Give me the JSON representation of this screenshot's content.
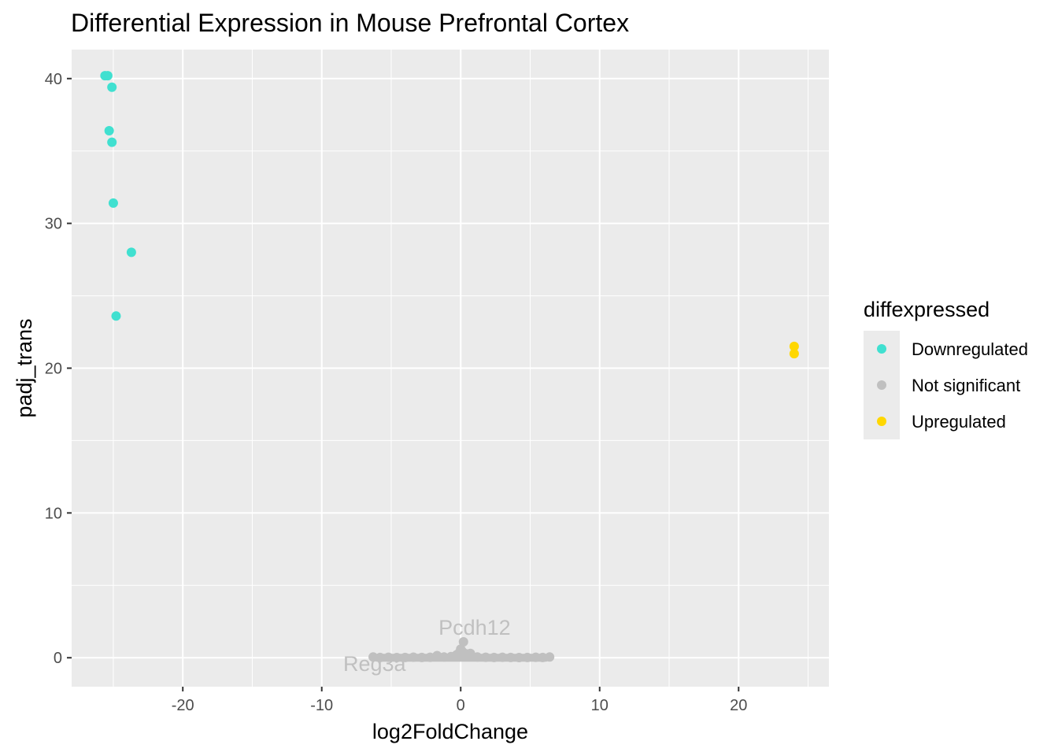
{
  "chart_data": {
    "type": "scatter",
    "title": "Differential Expression in Mouse Prefrontal Cortex",
    "xlabel": "log2FoldChange",
    "ylabel": "padj_trans",
    "xlim": [
      -28,
      26.5
    ],
    "ylim": [
      -2,
      42
    ],
    "xticks": [
      -20,
      -10,
      0,
      10,
      20
    ],
    "yticks": [
      0,
      10,
      20,
      30,
      40
    ],
    "grid": true,
    "legend": {
      "title": "diffexpressed",
      "position": "right",
      "entries": [
        {
          "label": "Downregulated",
          "color": "#40E0D0"
        },
        {
          "label": "Not significant",
          "color": "#C0C0C0"
        },
        {
          "label": "Upregulated",
          "color": "#FFD700"
        }
      ]
    },
    "series": [
      {
        "name": "Downregulated",
        "color": "#40E0D0",
        "points": [
          {
            "x": -25.6,
            "y": 40.2
          },
          {
            "x": -25.4,
            "y": 40.2
          },
          {
            "x": -25.1,
            "y": 39.4
          },
          {
            "x": -25.3,
            "y": 36.4
          },
          {
            "x": -25.1,
            "y": 35.6
          },
          {
            "x": -25.0,
            "y": 31.4
          },
          {
            "x": -23.7,
            "y": 28.0
          },
          {
            "x": -24.8,
            "y": 23.6
          }
        ]
      },
      {
        "name": "Not significant",
        "color": "#C0C0C0",
        "points": [
          {
            "x": -6.3,
            "y": 0.05
          },
          {
            "x": -5.8,
            "y": 0.02
          },
          {
            "x": -5.2,
            "y": 0.03
          },
          {
            "x": -4.6,
            "y": 0.01
          },
          {
            "x": -4.0,
            "y": 0.02
          },
          {
            "x": -3.4,
            "y": 0.04
          },
          {
            "x": -2.8,
            "y": 0.02
          },
          {
            "x": -2.2,
            "y": 0.03
          },
          {
            "x": -1.7,
            "y": 0.15
          },
          {
            "x": -1.2,
            "y": 0.05
          },
          {
            "x": -0.7,
            "y": 0.08
          },
          {
            "x": -0.3,
            "y": 0.2
          },
          {
            "x": -0.1,
            "y": 0.35
          },
          {
            "x": 0.0,
            "y": 0.6
          },
          {
            "x": 0.1,
            "y": 0.45
          },
          {
            "x": 0.2,
            "y": 1.1
          },
          {
            "x": 0.3,
            "y": 0.3
          },
          {
            "x": 0.5,
            "y": 0.25
          },
          {
            "x": 0.7,
            "y": 0.3
          },
          {
            "x": 1.2,
            "y": 0.05
          },
          {
            "x": 1.8,
            "y": 0.03
          },
          {
            "x": 2.4,
            "y": 0.02
          },
          {
            "x": 3.0,
            "y": 0.03
          },
          {
            "x": 3.6,
            "y": 0.02
          },
          {
            "x": 4.2,
            "y": 0.01
          },
          {
            "x": 4.8,
            "y": 0.02
          },
          {
            "x": 5.4,
            "y": 0.03
          },
          {
            "x": 5.9,
            "y": 0.02
          },
          {
            "x": 6.4,
            "y": 0.05
          }
        ]
      },
      {
        "name": "Upregulated",
        "color": "#FFD700",
        "points": [
          {
            "x": 24.0,
            "y": 21.5
          },
          {
            "x": 24.0,
            "y": 21.0
          }
        ]
      }
    ],
    "annotations": [
      {
        "text": "Pcdh12",
        "x": 1.0,
        "y": 1.6,
        "color": "#C0C0C0"
      },
      {
        "text": "Reg3a",
        "x": -6.2,
        "y": -0.9,
        "color": "#C0C0C0"
      }
    ]
  }
}
